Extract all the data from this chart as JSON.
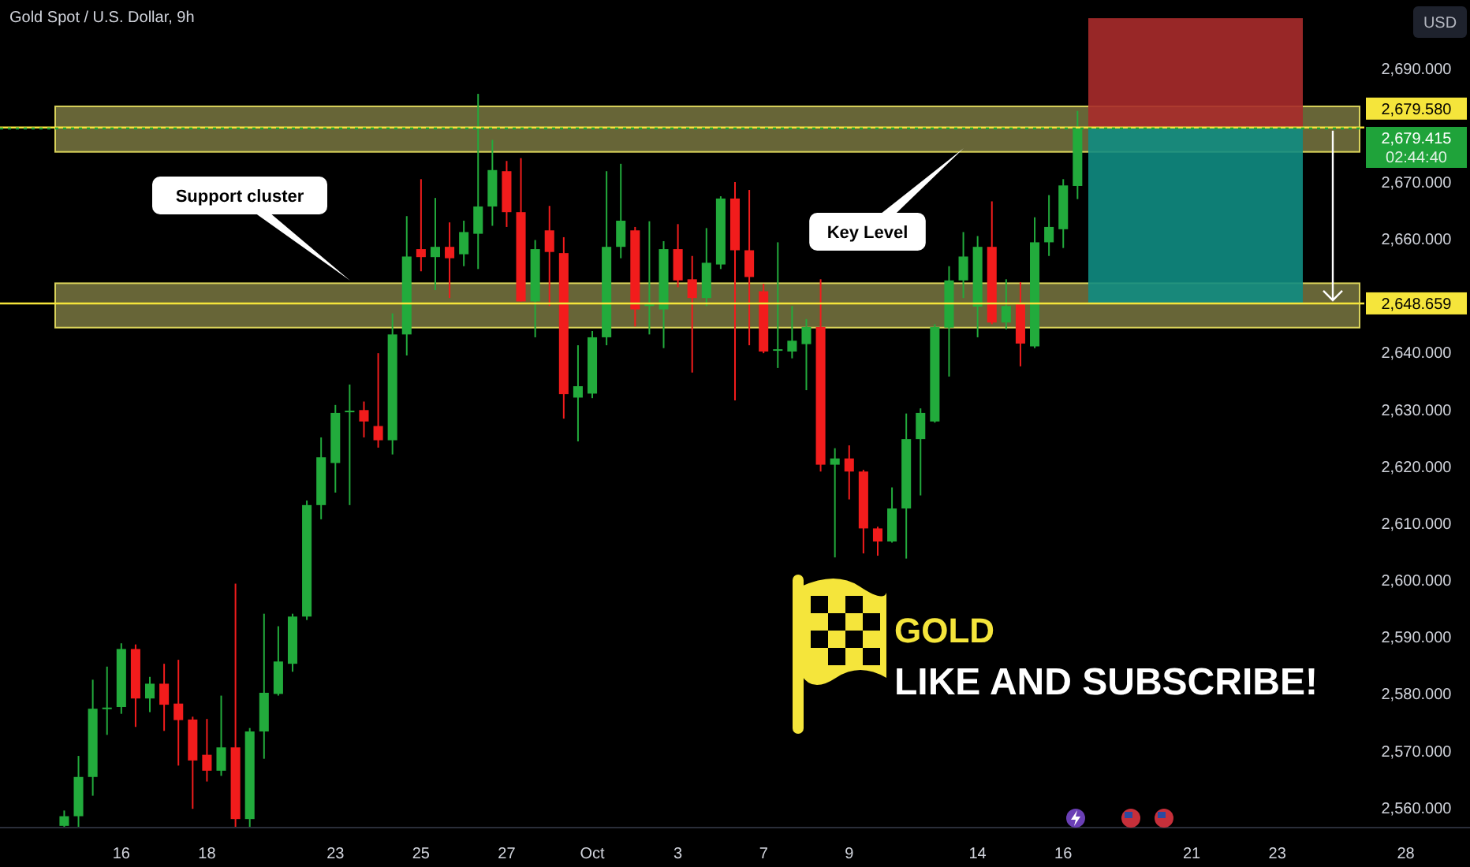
{
  "chart_data": {
    "type": "candlestick",
    "title": "Gold Spot / U.S. Dollar, 9h",
    "ylabel": "USD",
    "categories": [
      null,
      null,
      null,
      null,
      null,
      null,
      null,
      null,
      "16",
      null,
      null,
      null,
      null,
      null,
      "18",
      null,
      null,
      null,
      null,
      null,
      null,
      null,
      null,
      "23",
      null,
      null,
      null,
      null,
      null,
      "25",
      null,
      null,
      null,
      null,
      null,
      "27",
      null,
      null,
      null,
      null,
      null,
      "Oct",
      null,
      null,
      null,
      null,
      null,
      "3",
      null,
      null,
      null,
      null,
      null,
      "7",
      null,
      null,
      null,
      null,
      null,
      "9",
      null,
      null,
      null,
      null,
      null,
      null,
      null,
      null,
      "14",
      null,
      null,
      null,
      null,
      null,
      "16",
      null,
      null,
      null,
      null,
      null,
      null,
      null,
      null,
      "21",
      null,
      null,
      null,
      null,
      null,
      "23",
      null,
      null,
      null,
      null,
      null,
      null,
      null,
      null,
      "28",
      null,
      null,
      null,
      null
    ],
    "ylim": [
      2556.5,
      2702
    ],
    "yticks": [
      {
        "value": 2560,
        "label": "2,560.000"
      },
      {
        "value": 2570,
        "label": "2,570.000"
      },
      {
        "value": 2580,
        "label": "2,580.000"
      },
      {
        "value": 2590,
        "label": "2,590.000"
      },
      {
        "value": 2600,
        "label": "2,600.000"
      },
      {
        "value": 2610,
        "label": "2,610.000"
      },
      {
        "value": 2620,
        "label": "2,620.000"
      },
      {
        "value": 2630,
        "label": "2,630.000"
      },
      {
        "value": 2640,
        "label": "2,640.000"
      },
      {
        "value": 2660,
        "label": "2,660.000"
      },
      {
        "value": 2670,
        "label": "2,670.000"
      },
      {
        "value": 2690,
        "label": "2,690.000"
      }
    ],
    "series": [
      {
        "ohlc": [
          null,
          null,
          null,
          null,
          [
            2556.8,
            2559.5,
            2556.6,
            2558.5
          ],
          [
            2558.5,
            2569.1,
            2556.6,
            2565.4
          ],
          [
            2565.4,
            2582.5,
            2562.1,
            2577.4
          ],
          [
            2577.4,
            2584.8,
            2572.8,
            2577.6
          ],
          [
            2577.7,
            2588.9,
            2576.5,
            2587.9
          ],
          [
            2587.9,
            2588.7,
            2574.2,
            2579.2
          ],
          [
            2579.2,
            2583,
            2576.8,
            2581.8
          ],
          [
            2581.8,
            2585.3,
            2573.5,
            2578.1
          ],
          [
            2578.3,
            2586,
            2567.4,
            2575.4
          ],
          [
            2575.5,
            2576,
            2559.8,
            2568.3
          ],
          [
            2569.3,
            2575.6,
            2564.6,
            2566.5
          ],
          [
            2566.5,
            2579.7,
            2565.6,
            2570.6
          ],
          [
            2570.6,
            2599.4,
            2556.6,
            2558
          ],
          [
            2558,
            2574,
            2556.6,
            2573.4
          ],
          [
            2573.4,
            2594.1,
            2568.6,
            2580.2
          ],
          [
            2580,
            2591.9,
            2579.7,
            2585.7
          ],
          [
            2585.3,
            2594.1,
            2583.9,
            2593.6
          ],
          [
            2593.6,
            2614,
            2593,
            2613.2
          ],
          [
            2613.2,
            2625.1,
            2610.7,
            2621.6
          ],
          [
            2620.6,
            2630.8,
            2615.4,
            2629.4
          ],
          [
            2629.6,
            2634.4,
            2613.2,
            2629.8
          ],
          [
            2629.9,
            2631.4,
            2625.1,
            2627.9
          ],
          [
            2627.1,
            2639.9,
            2623.3,
            2624.6
          ],
          [
            2624.6,
            2646.9,
            2622.1,
            2643.2
          ],
          [
            2643.2,
            2664,
            2639.5,
            2656.9
          ],
          [
            2658.2,
            2670.5,
            2654.3,
            2656.8
          ],
          [
            2656.8,
            2667.2,
            2651,
            2658.6
          ],
          [
            2658.6,
            2662.9,
            2649.6,
            2656.6
          ],
          [
            2657.3,
            2663.2,
            2655.2,
            2661.2
          ],
          [
            2660.9,
            2685.5,
            2654.7,
            2665.7
          ],
          [
            2665.7,
            2677.4,
            2662.3,
            2672.1
          ],
          [
            2671.9,
            2673.7,
            2662.1,
            2664.7
          ],
          [
            2664.7,
            2674.2,
            2649,
            2649
          ],
          [
            2649,
            2659.8,
            2642.7,
            2658.2
          ],
          [
            2661.5,
            2665.8,
            2648.2,
            2657.7
          ],
          [
            2657.5,
            2660.3,
            2628.4,
            2632.7
          ],
          [
            2632.1,
            2641.3,
            2624.4,
            2634.1
          ],
          [
            2632.8,
            2643.8,
            2632,
            2642.7
          ],
          [
            2642.7,
            2671.9,
            2641.3,
            2658.6
          ],
          [
            2658.6,
            2673.2,
            2656.6,
            2663.2
          ],
          [
            2661.5,
            2662.1,
            2644.6,
            2647.6
          ],
          [
            2648.2,
            2663.1,
            2643.2,
            2648.5
          ],
          [
            2647.6,
            2659.6,
            2640.8,
            2658.2
          ],
          [
            2658.2,
            2662.6,
            2651.5,
            2652.7
          ],
          [
            2652.9,
            2657,
            2636.5,
            2649.6
          ],
          [
            2649.6,
            2661.9,
            2648.2,
            2655.8
          ],
          [
            2655.5,
            2667.5,
            2654.7,
            2667.1
          ],
          [
            2667.1,
            2670,
            2631.6,
            2658
          ],
          [
            2658,
            2668.6,
            2641.3,
            2653.3
          ],
          [
            2650.8,
            2652.1,
            2639.9,
            2640.2
          ],
          [
            2640.4,
            2659.4,
            2637.3,
            2640.6
          ],
          [
            2640.2,
            2648.2,
            2639,
            2642.1
          ],
          [
            2641.5,
            2645.9,
            2633.4,
            2644.5
          ],
          [
            2644.5,
            2652.9,
            2619.1,
            2620.3
          ],
          [
            2620.3,
            2623.2,
            2604,
            2621.4
          ],
          [
            2621.4,
            2623.7,
            2614.2,
            2619.1
          ],
          [
            2619.1,
            2619.4,
            2604.7,
            2609.1
          ],
          [
            2609.1,
            2609.4,
            2604.3,
            2606.8
          ],
          [
            2606.8,
            2616.3,
            2606.6,
            2612.6
          ],
          [
            2612.6,
            2629.3,
            2603.8,
            2624.8
          ],
          [
            2624.8,
            2630.2,
            2614.9,
            2629.4
          ],
          [
            2627.9,
            2645,
            2627.7,
            2644.5
          ],
          [
            2644.4,
            2655.2,
            2635.8,
            2652.7
          ],
          [
            2652.7,
            2661.2,
            2649.6,
            2656.9
          ],
          [
            2648.1,
            2660.5,
            2642.7,
            2658.6
          ],
          [
            2658.6,
            2666.6,
            2645,
            2645.3
          ],
          [
            2645.3,
            2652.9,
            2644.1,
            2648.2
          ],
          [
            2648.7,
            2652.4,
            2637.6,
            2641.6
          ],
          [
            2641.1,
            2663.8,
            2640.8,
            2659.4
          ],
          [
            2659.4,
            2667.7,
            2657,
            2662.1
          ],
          [
            2661.7,
            2670.5,
            2658.4,
            2669.4
          ],
          [
            2669.3,
            2682.5,
            2667,
            2679.4
          ],
          null,
          null,
          null,
          null,
          null,
          null,
          null,
          null,
          null,
          null,
          null,
          null,
          null,
          null,
          null,
          null,
          null,
          null,
          null,
          null,
          null,
          null,
          null,
          null,
          null,
          null,
          null
        ],
        "colors": [
          null,
          null,
          null,
          null,
          "#22ab3c",
          "#22ab3c",
          "#22ab3c",
          "#22ab3c",
          "#22ab3c",
          "#f21c1c",
          "#22ab3c",
          "#f21c1c",
          "#f21c1c",
          "#f21c1c",
          "#f21c1c",
          "#22ab3c",
          "#f21c1c",
          "#22ab3c",
          "#22ab3c",
          "#22ab3c",
          "#22ab3c",
          "#22ab3c",
          "#22ab3c",
          "#22ab3c",
          "#22ab3c",
          "#f21c1c",
          "#f21c1c",
          "#22ab3c",
          "#22ab3c",
          "#f21c1c",
          "#22ab3c",
          "#f21c1c",
          "#22ab3c",
          "#22ab3c",
          "#22ab3c",
          "#f21c1c",
          "#f21c1c",
          "#22ab3c",
          "#f21c1c",
          "#f21c1c",
          "#22ab3c",
          "#22ab3c",
          "#22ab3c",
          "#22ab3c",
          "#f21c1c",
          "#22ab3c",
          "#22ab3c",
          "#f21c1c",
          "#f21c1c",
          "#22ab3c",
          "#22ab3c",
          "#f21c1c",
          "#f21c1c",
          "#f21c1c",
          "#22ab3c",
          "#22ab3c",
          "#22ab3c",
          "#f21c1c",
          "#22ab3c",
          "#f21c1c",
          "#f21c1c",
          "#f21c1c",
          "#22ab3c",
          "#22ab3c",
          "#22ab3c",
          "#22ab3c",
          "#22ab3c",
          "#22ab3c",
          "#22ab3c",
          "#f21c1c",
          "#22ab3c",
          "#f21c1c",
          "#22ab3c",
          "#22ab3c",
          "#22ab3c",
          "#22ab3c",
          null,
          null,
          null,
          null,
          null,
          null,
          null,
          null,
          null,
          null,
          null,
          null,
          null,
          null,
          null,
          null,
          null,
          null,
          null,
          null,
          null,
          null,
          null,
          null,
          null,
          null,
          null
        ]
      }
    ],
    "bands": [
      {
        "axis": "y",
        "from": 2644.4,
        "to": 2652.2,
        "color": "#8a874a"
      },
      {
        "axis": "y",
        "from": 2675.3,
        "to": 2683.3,
        "color": "#8a874a"
      },
      {
        "axis": "y",
        "from": 2648.6,
        "to": 2679.6,
        "color": "#108c82"
      },
      {
        "axis": "y",
        "from": 2679.6,
        "to": 2698.8,
        "color": "#a82b2b"
      }
    ],
    "ref_lines": [
      {
        "axis": "y",
        "value": 2679.58,
        "label": "2,679.580",
        "color": "#f5e53b",
        "line_style": "solid"
      },
      {
        "axis": "y",
        "value": 2679.415,
        "label": "2,679.415",
        "color": "#1fa33a",
        "line_style": "dotted"
      },
      {
        "axis": "y",
        "value": 2648.659,
        "label": "2,648.659",
        "color": "#f5e53b",
        "line_style": "solid"
      }
    ],
    "annotations": [
      "Support cluster",
      "Key Level",
      "02:44:40",
      "GOLD",
      "LIKE AND SUBSCRIBE!"
    ]
  }
}
